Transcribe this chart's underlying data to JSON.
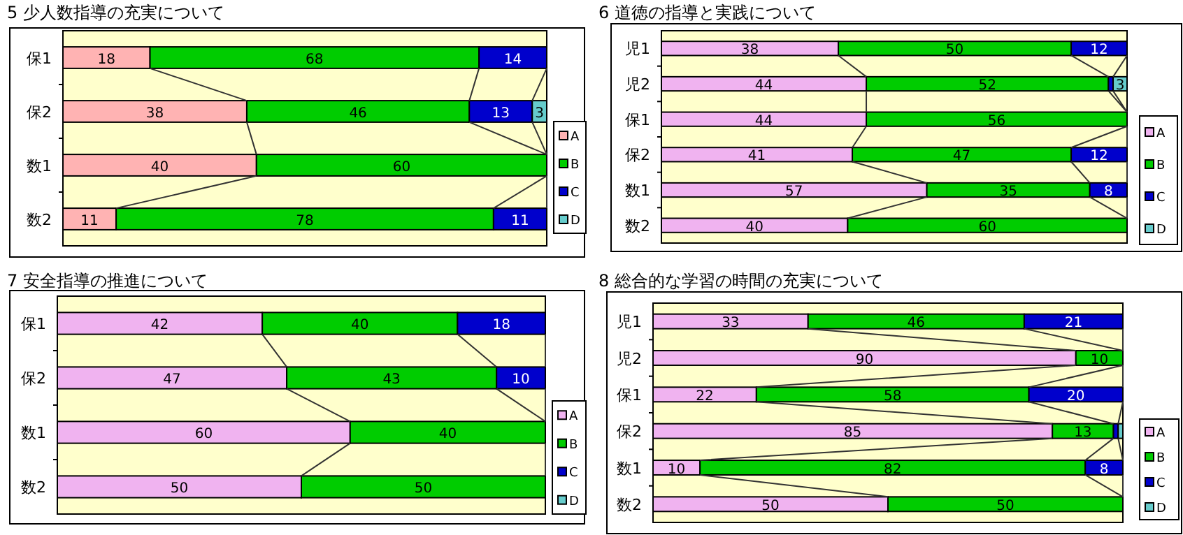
{
  "chart_data": [
    {
      "type": "bar",
      "orientation": "horizontal",
      "stacked": true,
      "title": "5  少人数指導の充実について",
      "categories": [
        "保1",
        "保2",
        "数1",
        "数2"
      ],
      "xlim": [
        0,
        100
      ],
      "tick_labels": "y",
      "legend": "right",
      "series": [
        {
          "name": "A",
          "color": "#ffb3b3",
          "values": [
            18,
            38,
            40,
            11
          ],
          "value_labels": [
            "18",
            "38",
            "40",
            "11"
          ]
        },
        {
          "name": "B",
          "color": "#00cc00",
          "values": [
            68,
            46,
            60,
            78
          ],
          "value_labels": [
            "68",
            "46",
            "60",
            "78"
          ]
        },
        {
          "name": "C",
          "color": "#0000cc",
          "values": [
            14,
            13,
            0,
            11
          ],
          "value_labels": [
            "14",
            "13",
            null,
            "11"
          ]
        },
        {
          "name": "D",
          "color": "#66cccc",
          "values": [
            0,
            3,
            0,
            0
          ],
          "value_labels": [
            null,
            "3",
            null,
            null
          ]
        }
      ]
    },
    {
      "type": "bar",
      "orientation": "horizontal",
      "stacked": true,
      "title": "6  道徳の指導と実践について",
      "categories": [
        "児1",
        "児2",
        "保1",
        "保2",
        "数1",
        "数2"
      ],
      "xlim": [
        0,
        100
      ],
      "tick_labels": "y",
      "legend": "right",
      "series": [
        {
          "name": "A",
          "color": "#f0b3f0",
          "values": [
            38,
            44,
            44,
            41,
            57,
            40
          ],
          "value_labels": [
            "38",
            "44",
            "44",
            "41",
            "57",
            "40"
          ]
        },
        {
          "name": "B",
          "color": "#00cc00",
          "values": [
            50,
            52,
            56,
            47,
            35,
            60
          ],
          "value_labels": [
            "50",
            "52",
            "56",
            "47",
            "35",
            "60"
          ]
        },
        {
          "name": "C",
          "color": "#0000cc",
          "values": [
            12,
            1,
            0,
            12,
            8,
            0
          ],
          "value_labels": [
            "12",
            null,
            null,
            "12",
            "8",
            null
          ]
        },
        {
          "name": "D",
          "color": "#66cccc",
          "values": [
            0,
            3,
            0,
            0,
            0,
            0
          ],
          "value_labels": [
            null,
            "3",
            null,
            null,
            null,
            null
          ]
        }
      ]
    },
    {
      "type": "bar",
      "orientation": "horizontal",
      "stacked": true,
      "title": "7  安全指導の推進について",
      "categories": [
        "保1",
        "保2",
        "数1",
        "数2"
      ],
      "xlim": [
        0,
        100
      ],
      "tick_labels": "y",
      "legend": "right",
      "series": [
        {
          "name": "A",
          "color": "#f0b3f0",
          "values": [
            42,
            47,
            60,
            50
          ],
          "value_labels": [
            "42",
            "47",
            "60",
            "50"
          ]
        },
        {
          "name": "B",
          "color": "#00cc00",
          "values": [
            40,
            43,
            40,
            50
          ],
          "value_labels": [
            "40",
            "43",
            "40",
            "50"
          ]
        },
        {
          "name": "C",
          "color": "#0000cc",
          "values": [
            18,
            10,
            0,
            0
          ],
          "value_labels": [
            "18",
            "10",
            null,
            null
          ]
        },
        {
          "name": "D",
          "color": "#66cccc",
          "values": [
            0,
            0,
            0,
            0
          ],
          "value_labels": [
            null,
            null,
            null,
            null
          ]
        }
      ]
    },
    {
      "type": "bar",
      "orientation": "horizontal",
      "stacked": true,
      "title": "8  総合的な学習の時間の充実について",
      "categories": [
        "児1",
        "児2",
        "保1",
        "保2",
        "数1",
        "数2"
      ],
      "xlim": [
        0,
        100
      ],
      "tick_labels": "y",
      "legend": "right",
      "series": [
        {
          "name": "A",
          "color": "#f0b3f0",
          "values": [
            33,
            90,
            22,
            85,
            10,
            50
          ],
          "value_labels": [
            "33",
            "90",
            "22",
            "85",
            "10",
            "50"
          ]
        },
        {
          "name": "B",
          "color": "#00cc00",
          "values": [
            46,
            10,
            58,
            13,
            82,
            50
          ],
          "value_labels": [
            "46",
            "10",
            "58",
            "13",
            "82",
            "50"
          ]
        },
        {
          "name": "C",
          "color": "#0000cc",
          "values": [
            21,
            0,
            20,
            1,
            8,
            0
          ],
          "value_labels": [
            "21",
            null,
            "20",
            null,
            "8",
            null
          ]
        },
        {
          "name": "D",
          "color": "#66cccc",
          "values": [
            0,
            0,
            0,
            1,
            0,
            0
          ],
          "value_labels": [
            null,
            null,
            null,
            null,
            null,
            null
          ]
        }
      ]
    }
  ]
}
